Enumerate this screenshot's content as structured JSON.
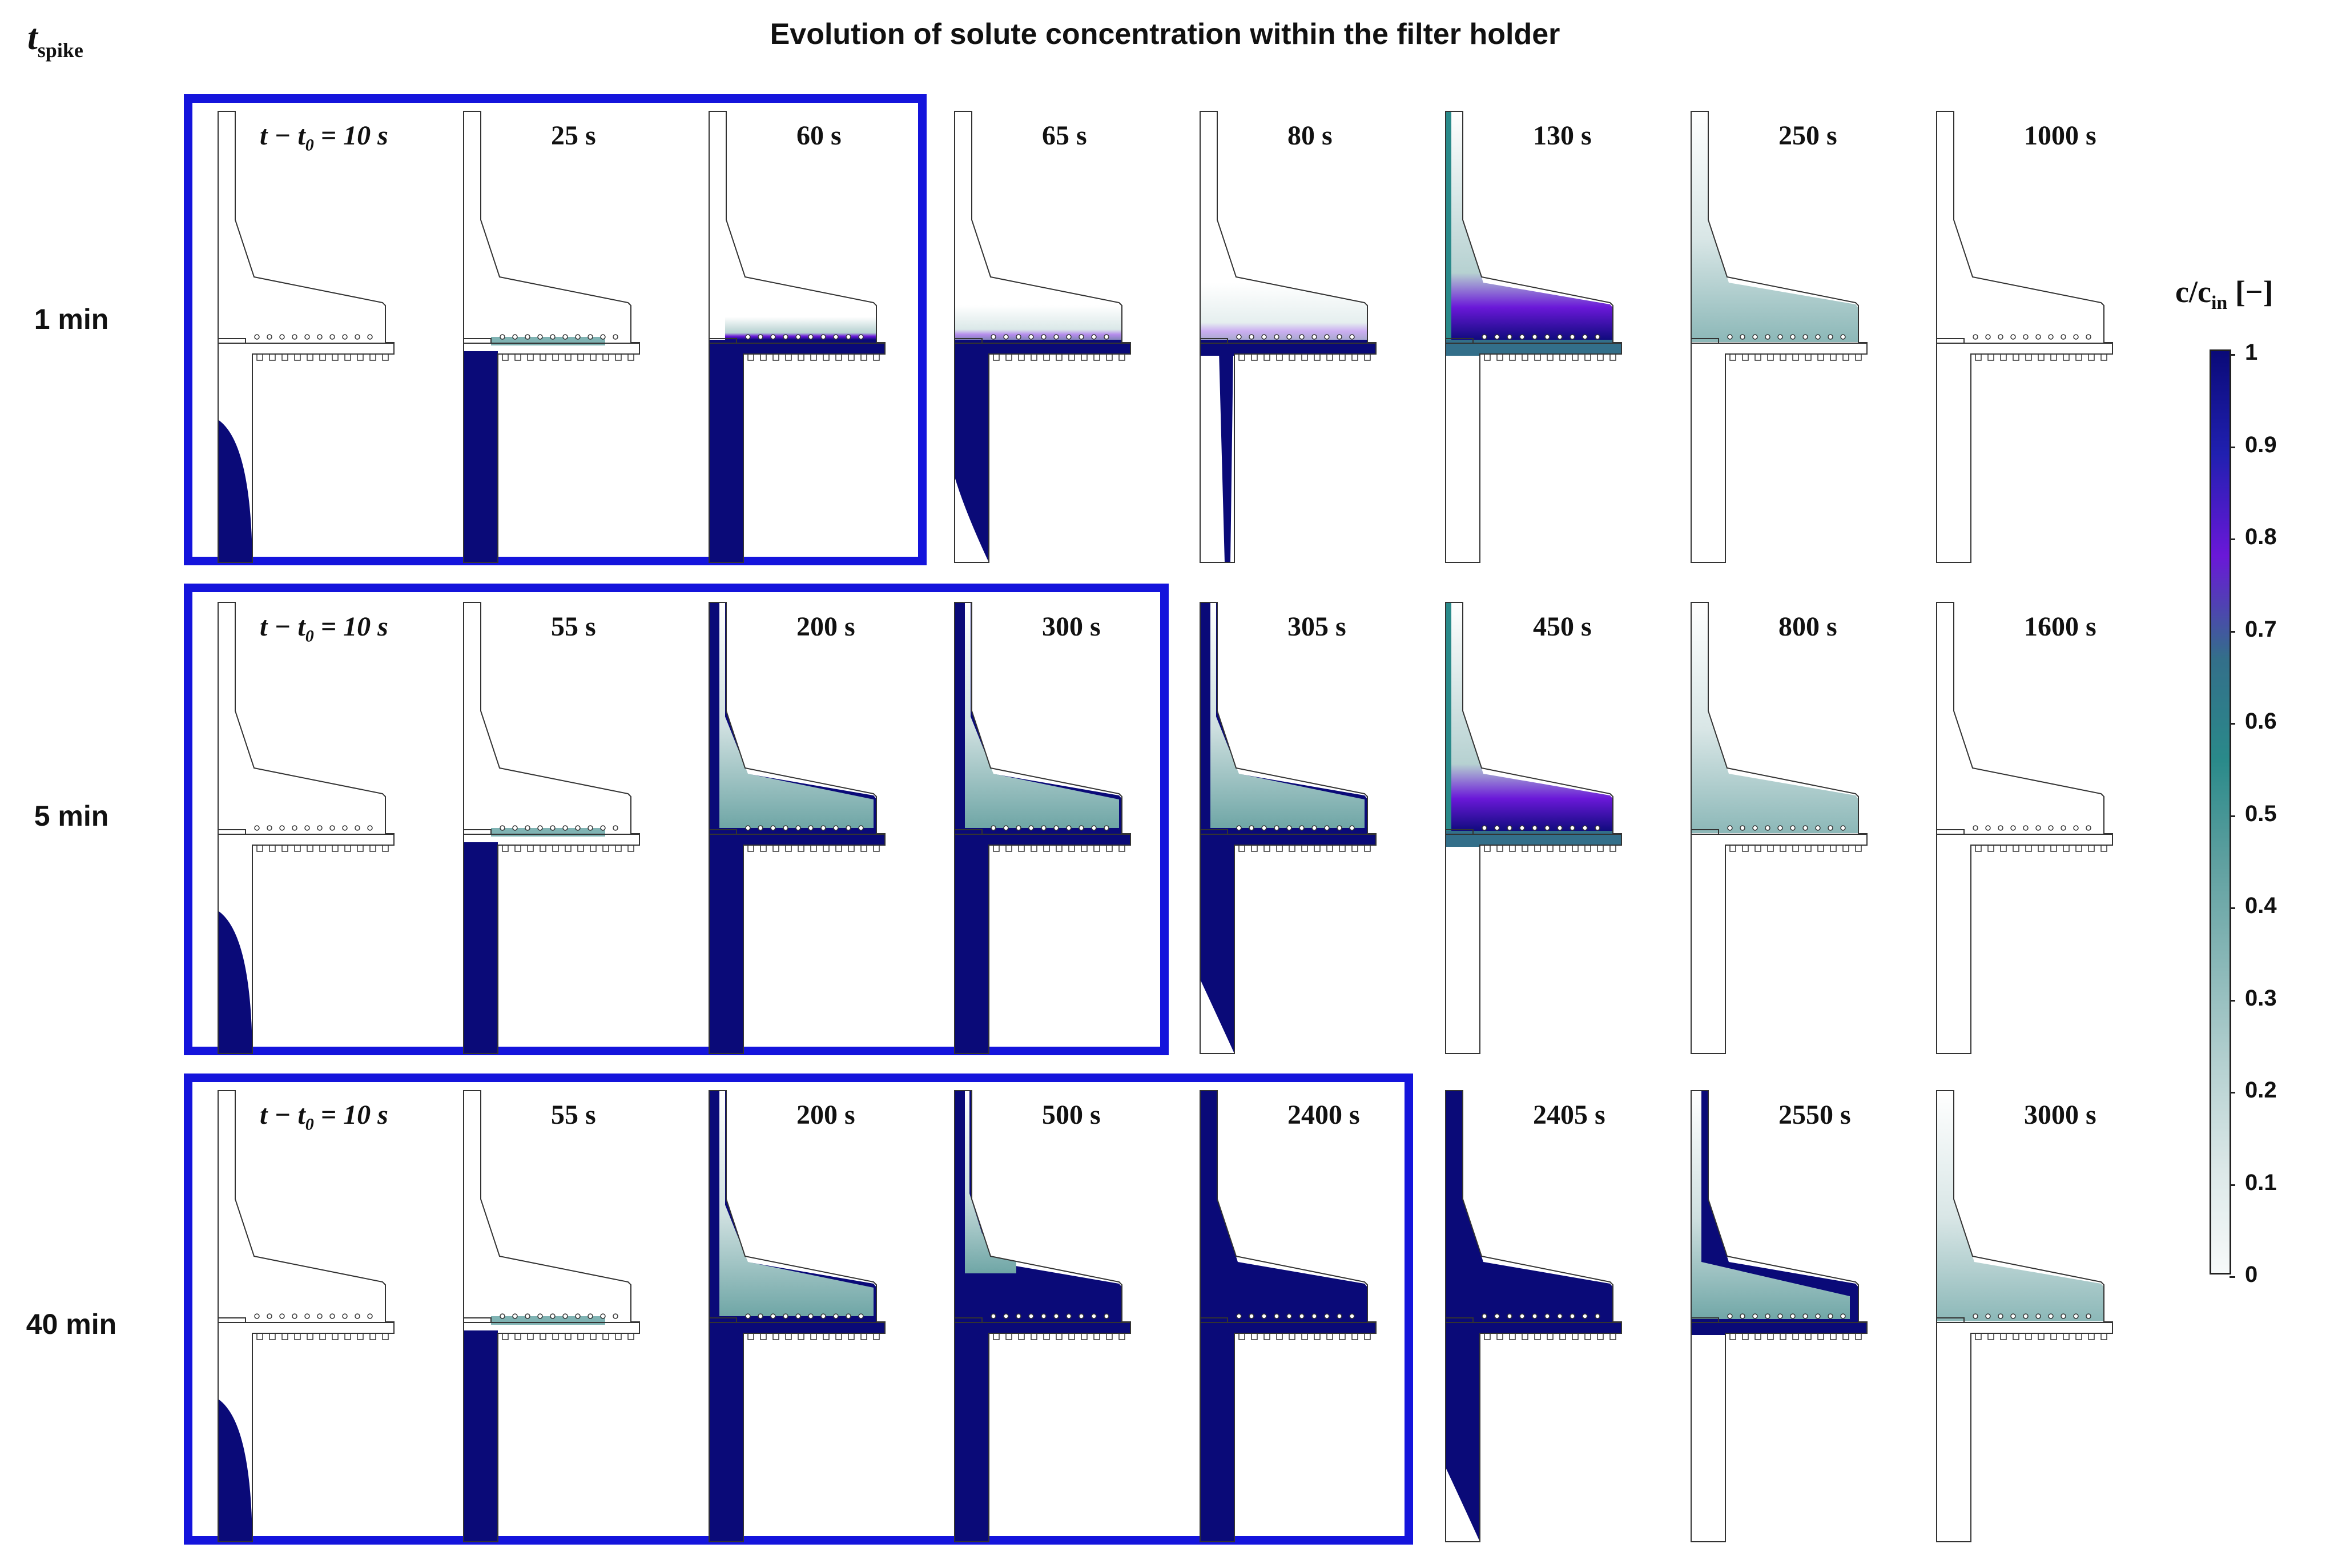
{
  "title": "Evolution of solute concentration within the filter holder",
  "y_axis_label": "t",
  "y_axis_label_sub": "spike",
  "first_label_prefix": "t − t",
  "first_label_sub": "0",
  "first_label_suffix": " = 10 s",
  "colorbar": {
    "label": "c/c",
    "label_sub": "in",
    "unit": " [−]",
    "ticks": [
      "1",
      "0.9",
      "0.8",
      "0.7",
      "0.6",
      "0.5",
      "0.4",
      "0.3",
      "0.2",
      "0.1",
      "0"
    ],
    "colors": [
      "#0a0a78",
      "#2020b0",
      "#6a18d8",
      "#336f8a",
      "#2a8a8a",
      "#5fa0a0",
      "#8ab8b8",
      "#b6d1d1",
      "#dce8e8",
      "#f7fafa"
    ]
  },
  "rows": [
    {
      "label": "1 min",
      "panels": [
        {
          "label": "t − t0 = 10 s",
          "state": "start"
        },
        {
          "label": "25 s",
          "state": "tube"
        },
        {
          "label": "60 s",
          "state": "tube-plate"
        },
        {
          "label": "65 s",
          "state": "tail-plate"
        },
        {
          "label": "80 s",
          "state": "thin"
        },
        {
          "label": "130 s",
          "state": "wash-mid"
        },
        {
          "label": "250 s",
          "state": "wash-light"
        },
        {
          "label": "1000 s",
          "state": "empty"
        }
      ],
      "highlighted_count": 3
    },
    {
      "label": "5 min",
      "panels": [
        {
          "label": "t − t0 = 10 s",
          "state": "start"
        },
        {
          "label": "55 s",
          "state": "tube"
        },
        {
          "label": "200 s",
          "state": "fill-mid"
        },
        {
          "label": "300 s",
          "state": "fill-mid"
        },
        {
          "label": "305 s",
          "state": "fill-mid-tail"
        },
        {
          "label": "450 s",
          "state": "wash-mid"
        },
        {
          "label": "800 s",
          "state": "wash-light"
        },
        {
          "label": "1600 s",
          "state": "empty"
        }
      ],
      "highlighted_count": 4
    },
    {
      "label": "40 min",
      "panels": [
        {
          "label": "t − t0 = 10 s",
          "state": "start"
        },
        {
          "label": "55 s",
          "state": "tube"
        },
        {
          "label": "200 s",
          "state": "fill-mid"
        },
        {
          "label": "500 s",
          "state": "fill-high"
        },
        {
          "label": "2400 s",
          "state": "full"
        },
        {
          "label": "2405 s",
          "state": "full-tail"
        },
        {
          "label": "2550 s",
          "state": "wash-heavy"
        },
        {
          "label": "3000 s",
          "state": "wash-light"
        }
      ],
      "highlighted_count": 5
    }
  ]
}
